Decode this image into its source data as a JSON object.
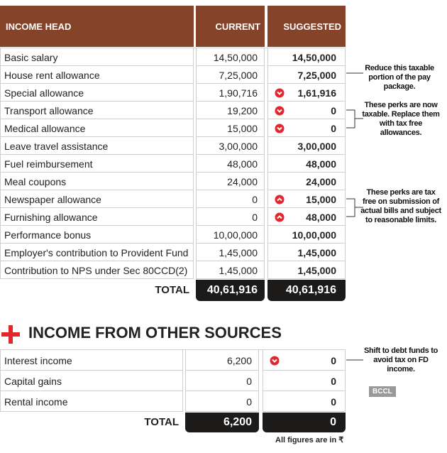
{
  "table": {
    "columns": [
      "INCOME HEAD",
      "CURRENT",
      "SUGGESTED"
    ],
    "rows": [
      {
        "head": "Basic salary",
        "current": "14,50,000",
        "suggested": "14,50,000"
      },
      {
        "head": "House rent allowance",
        "current": "7,25,000",
        "suggested": "7,25,000"
      },
      {
        "head": "Special allowance",
        "current": "1,90,716",
        "suggested": "1,61,916",
        "marker": "down"
      },
      {
        "head": "Transport allowance",
        "current": "19,200",
        "suggested": "0",
        "marker": "down"
      },
      {
        "head": "Medical allowance",
        "current": "15,000",
        "suggested": "0",
        "marker": "down"
      },
      {
        "head": "Leave travel assistance",
        "current": "3,00,000",
        "suggested": "3,00,000"
      },
      {
        "head": "Fuel reimbursement",
        "current": "48,000",
        "suggested": "48,000"
      },
      {
        "head": "Meal coupons",
        "current": "24,000",
        "suggested": "24,000"
      },
      {
        "head": "Newspaper allowance",
        "current": "0",
        "suggested": "15,000",
        "marker": "up"
      },
      {
        "head": "Furnishing allowance",
        "current": "0",
        "suggested": "48,000",
        "marker": "up"
      },
      {
        "head": "Performance bonus",
        "current": "10,00,000",
        "suggested": "10,00,000"
      },
      {
        "head": "Employer's contribution to Provident Fund",
        "current": "1,45,000",
        "suggested": "1,45,000"
      },
      {
        "head": "Contribution to NPS under Sec 80CCD(2)",
        "current": "1,45,000",
        "suggested": "1,45,000"
      }
    ],
    "total": {
      "label": "TOTAL",
      "current": "40,61,916",
      "suggested": "40,61,916"
    }
  },
  "notes": [
    "Reduce this taxable portion of the pay package.",
    "These perks are now taxable. Replace them with tax free allowances.",
    "These perks are tax free on submission of actual bills and subject to reasonable limits.",
    "Shift to debt funds to avoid tax on FD income."
  ],
  "other_sources": {
    "title": "INCOME FROM OTHER SOURCES",
    "rows": [
      {
        "head": "Interest income",
        "current": "6,200",
        "suggested": "0",
        "marker": "down"
      },
      {
        "head": "Capital gains",
        "current": "0",
        "suggested": "0"
      },
      {
        "head": "Rental income",
        "current": "0",
        "suggested": "0"
      }
    ],
    "total": {
      "label": "TOTAL",
      "current": "6,200",
      "suggested": "0"
    }
  },
  "credit": "BCCL",
  "footnote": "All figures are in ₹"
}
